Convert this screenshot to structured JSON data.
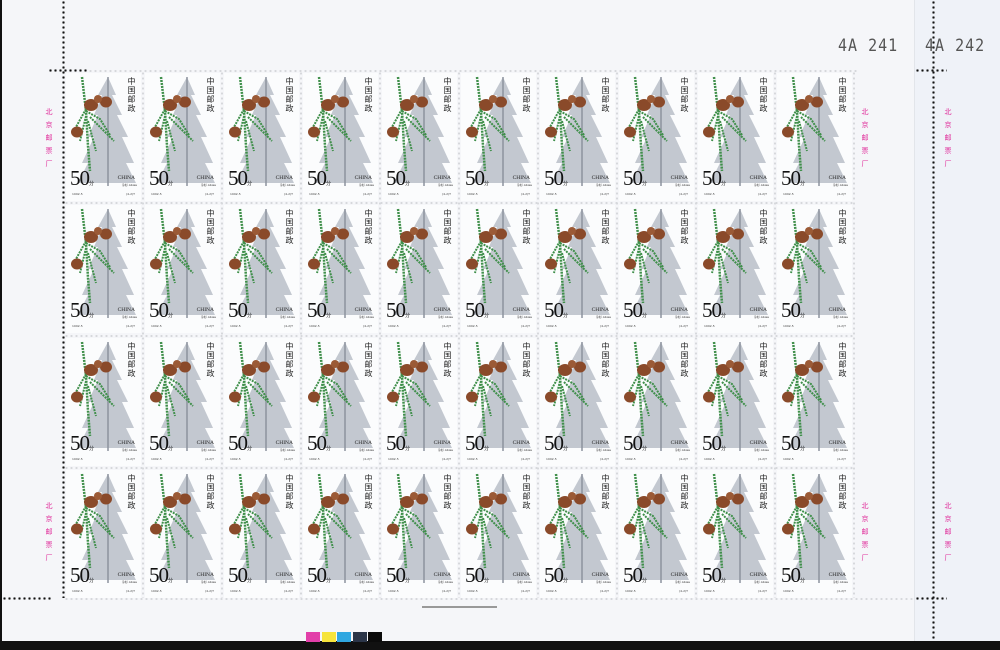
{
  "sheet": {
    "sheet_numbers": [
      "4A 241",
      "4A 242"
    ],
    "margin_inscription": "北京邮票厂",
    "rows": 4,
    "columns": 10,
    "color_bar": [
      "#e23fa9",
      "#f6e43c",
      "#2fa7e1",
      "#2b3548",
      "#0b0b0b"
    ]
  },
  "stamp": {
    "country_cn": "中国邮政",
    "value": "50",
    "unit": "分",
    "country_en": "CHINA",
    "caption": "冷杉 Abies",
    "year_code": "1992-5",
    "serial": "(4-2)T",
    "colors": {
      "tree": "#b9bec8",
      "branch": "#3f8f4a",
      "cone": "#8a4a2a"
    }
  }
}
